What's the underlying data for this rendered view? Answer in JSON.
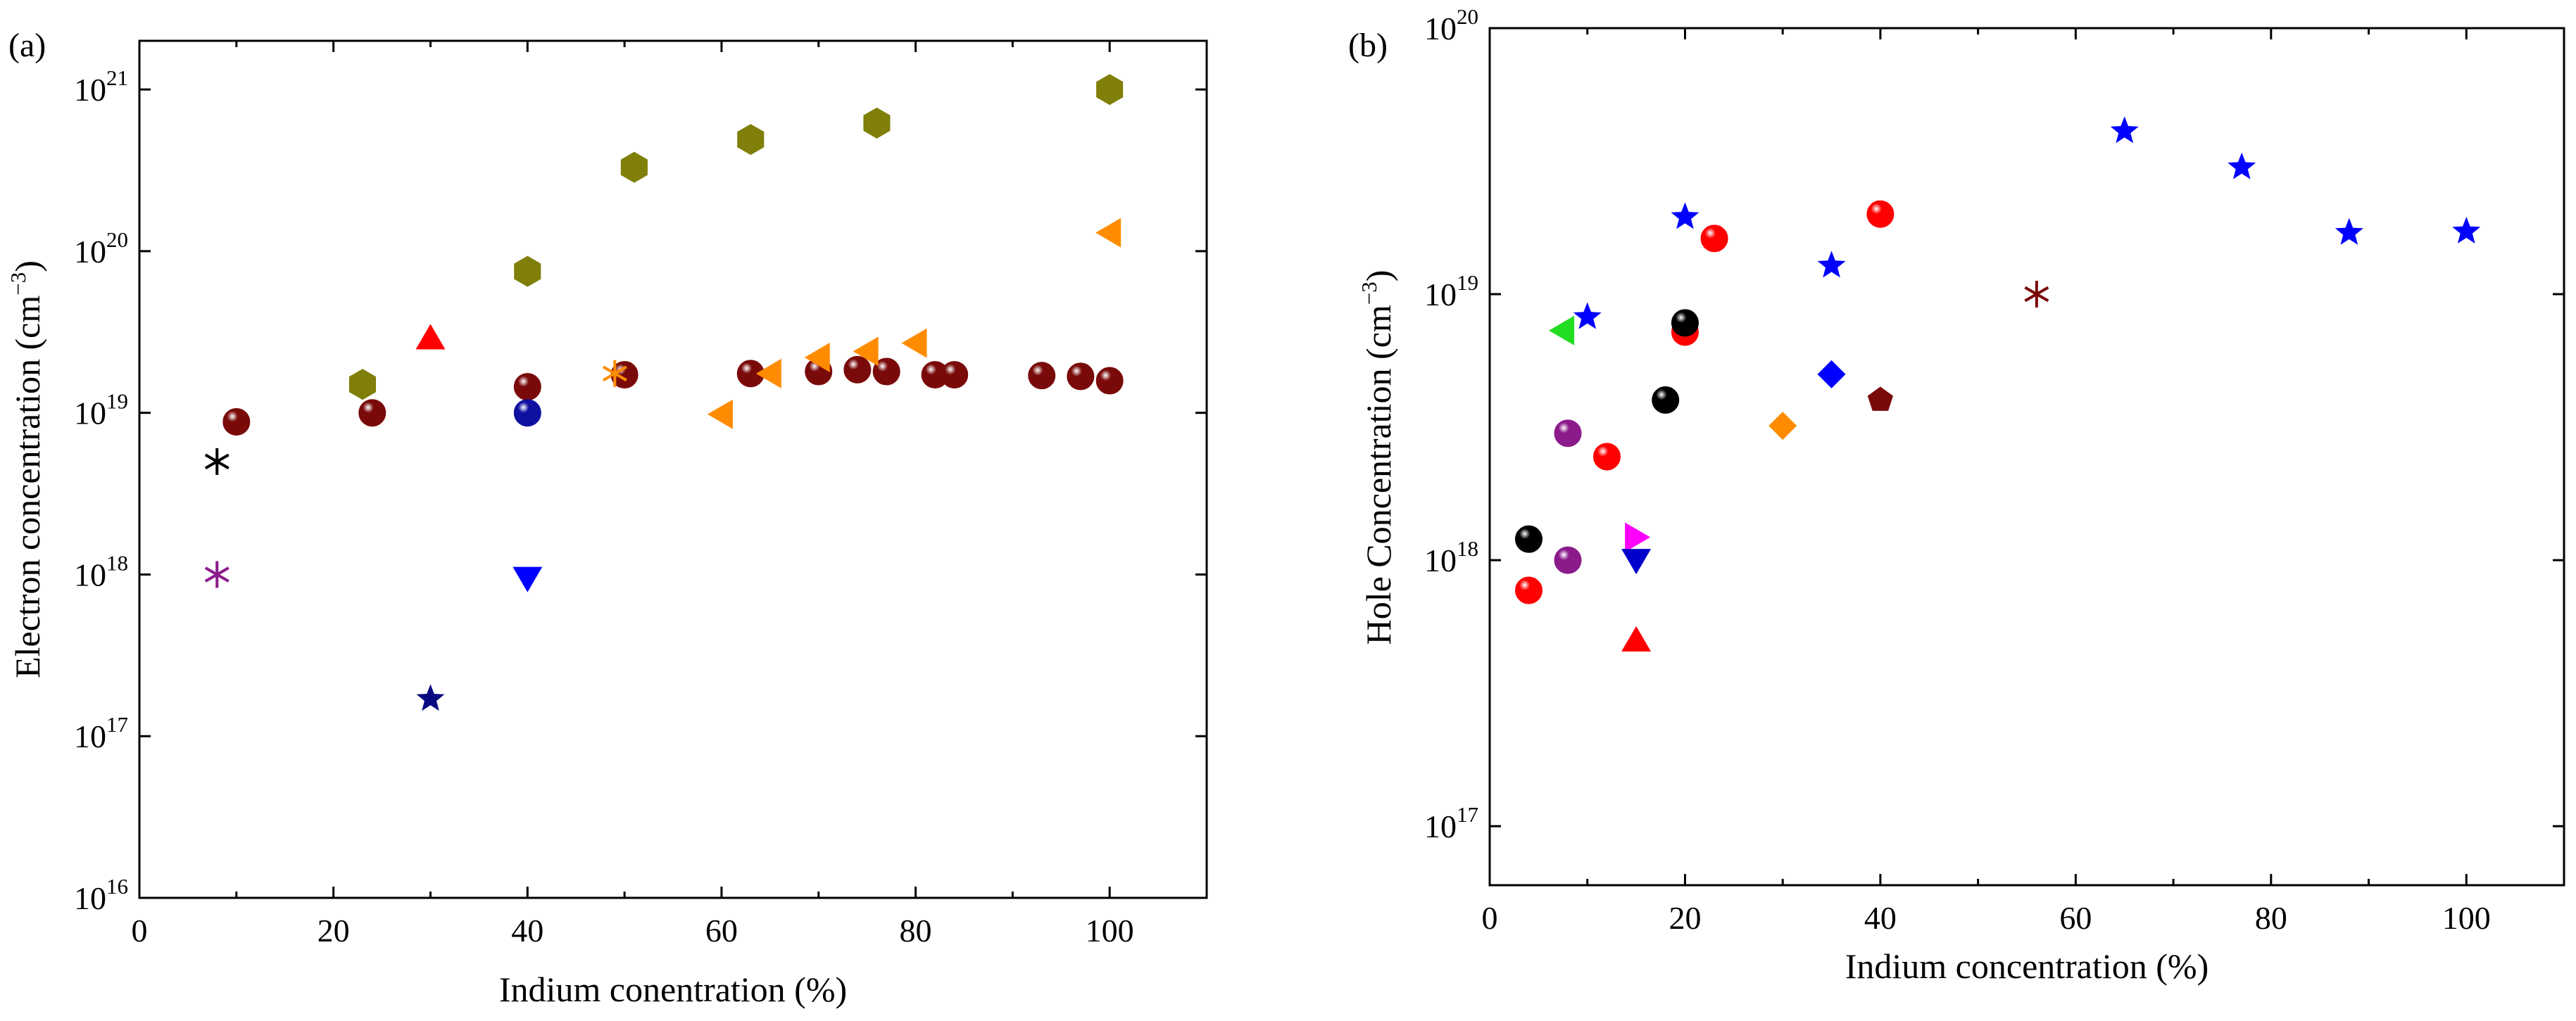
{
  "chart_data": [
    {
      "panel": "(a)",
      "type": "scatter",
      "title": "",
      "xlabel": "Indium conentration (%)",
      "ylabel": "Electron concentration (cm⁻³)",
      "ylabel_main": "Electron concentration (cm",
      "ylabel_exp": "−3",
      "ylabel_close": ")",
      "xlim": [
        0,
        110
      ],
      "ylim": [
        1e+16,
        2e+21
      ],
      "yscale": "log",
      "x_ticks": [
        0,
        20,
        40,
        60,
        80,
        100
      ],
      "y_ticks": [
        {
          "value": 1e+16,
          "base": "10",
          "exp": "16"
        },
        {
          "value": 1e+17,
          "base": "10",
          "exp": "17"
        },
        {
          "value": 1e+18,
          "base": "10",
          "exp": "18"
        },
        {
          "value": 1e+19,
          "base": "10",
          "exp": "19"
        },
        {
          "value": 1e+20,
          "base": "10",
          "exp": "20"
        },
        {
          "value": 1e+21,
          "base": "10",
          "exp": "21"
        }
      ],
      "series": [
        {
          "name": "dark red spheres",
          "marker": "sphere",
          "color": "#7a0a0a",
          "points": [
            [
              10,
              8.8e+18
            ],
            [
              24,
              1e+19
            ],
            [
              40,
              1.45e+19
            ],
            [
              50,
              1.72e+19
            ],
            [
              63,
              1.75e+19
            ],
            [
              70,
              1.8e+19
            ],
            [
              74,
              1.85e+19
            ],
            [
              77,
              1.8e+19
            ],
            [
              82,
              1.72e+19
            ],
            [
              84,
              1.72e+19
            ],
            [
              93,
              1.7e+19
            ],
            [
              97,
              1.68e+19
            ],
            [
              100,
              1.58e+19
            ]
          ]
        },
        {
          "name": "olive hexagons",
          "marker": "hexagon",
          "color": "#7f7f0a",
          "points": [
            [
              23,
              1.5e+19
            ],
            [
              40,
              7.5e+19
            ],
            [
              51,
              3.3e+20
            ],
            [
              63,
              4.9e+20
            ],
            [
              76,
              6.2e+20
            ],
            [
              100,
              1e+21
            ]
          ]
        },
        {
          "name": "orange left triangles",
          "marker": "triangle-left",
          "color": "#ff8c00",
          "points": [
            [
              60,
              9.8e+18
            ],
            [
              65,
              1.75e+19
            ],
            [
              70,
              2.2e+19
            ],
            [
              75,
              2.4e+19
            ],
            [
              80,
              2.7e+19
            ],
            [
              100,
              1.3e+20
            ]
          ]
        },
        {
          "name": "orange asterisk",
          "marker": "asterisk",
          "color": "#ff8c00",
          "points": [
            [
              49,
              1.75e+19
            ]
          ]
        },
        {
          "name": "black asterisk",
          "marker": "asterisk",
          "color": "#000000",
          "points": [
            [
              8,
              5e+18
            ]
          ]
        },
        {
          "name": "purple asterisk",
          "marker": "asterisk",
          "color": "#8b1a8b",
          "points": [
            [
              8,
              1e+18
            ]
          ]
        },
        {
          "name": "red triangle",
          "marker": "triangle-up",
          "color": "#ff0000",
          "points": [
            [
              30,
              2.9e+19
            ]
          ]
        },
        {
          "name": "blue sphere",
          "marker": "sphere",
          "color": "#1010a0",
          "points": [
            [
              40,
              1e+19
            ]
          ]
        },
        {
          "name": "blue down triangle",
          "marker": "triangle-down",
          "color": "#0000ff",
          "points": [
            [
              40,
              9.5e+17
            ]
          ]
        },
        {
          "name": "navy star",
          "marker": "star",
          "color": "#0a0a80",
          "points": [
            [
              30,
              1.7e+17
            ]
          ]
        }
      ]
    },
    {
      "panel": "(b)",
      "type": "scatter",
      "title": "",
      "xlabel": "Indium concentration (%)",
      "ylabel": "Hole Concentration (cm⁻³)",
      "ylabel_main": "Hole Concentration (cm",
      "ylabel_exp": "−3",
      "ylabel_close": ")",
      "xlim": [
        0,
        110
      ],
      "ylim": [
        6e+16,
        1e+20
      ],
      "yscale": "log",
      "x_ticks": [
        0,
        20,
        40,
        60,
        80,
        100
      ],
      "y_ticks": [
        {
          "value": 1e+17,
          "base": "10",
          "exp": "17"
        },
        {
          "value": 1e+18,
          "base": "10",
          "exp": "18"
        },
        {
          "value": 1e+19,
          "base": "10",
          "exp": "19"
        },
        {
          "value": 1e+20,
          "base": "10",
          "exp": "20"
        }
      ],
      "series": [
        {
          "name": "blue stars",
          "marker": "star",
          "color": "#0000ff",
          "points": [
            [
              10,
              8.2e+18
            ],
            [
              20,
              1.95e+19
            ],
            [
              35,
              1.28e+19
            ],
            [
              65,
              4.1e+19
            ],
            [
              77,
              3e+19
            ],
            [
              88,
              1.7e+19
            ],
            [
              100,
              1.72e+19
            ]
          ]
        },
        {
          "name": "red spheres",
          "marker": "sphere",
          "color": "#ff0000",
          "points": [
            [
              4,
              7.7e+17
            ],
            [
              12,
              2.45e+18
            ],
            [
              20,
              7.2e+18
            ],
            [
              23,
              1.62e+19
            ],
            [
              40,
              2e+19
            ]
          ]
        },
        {
          "name": "black spheres",
          "marker": "sphere",
          "color": "#000000",
          "points": [
            [
              4,
              1.2e+18
            ],
            [
              18,
              4e+18
            ],
            [
              20,
              7.8e+18
            ]
          ]
        },
        {
          "name": "purple spheres",
          "marker": "sphere",
          "color": "#8b1a8b",
          "points": [
            [
              8,
              3e+18
            ],
            [
              8,
              1e+18
            ]
          ]
        },
        {
          "name": "green left triangle",
          "marker": "triangle-left",
          "color": "#22dd22",
          "points": [
            [
              7.5,
              7.3e+18
            ]
          ]
        },
        {
          "name": "magenta right triangle",
          "marker": "triangle-right",
          "color": "#ff00ff",
          "points": [
            [
              15,
              1.22e+18
            ]
          ]
        },
        {
          "name": "blue down triangle",
          "marker": "triangle-down",
          "color": "#0000cc",
          "points": [
            [
              15,
              1e+18
            ]
          ]
        },
        {
          "name": "red up triangle",
          "marker": "triangle-up",
          "color": "#ff0000",
          "points": [
            [
              15,
              5e+17
            ]
          ]
        },
        {
          "name": "orange diamond",
          "marker": "diamond",
          "color": "#ff8c00",
          "points": [
            [
              30,
              3.2e+18
            ]
          ]
        },
        {
          "name": "blue diamond",
          "marker": "diamond",
          "color": "#0000ff",
          "points": [
            [
              35,
              5e+18
            ]
          ]
        },
        {
          "name": "dark red pentagon",
          "marker": "pentagon",
          "color": "#7a0a0a",
          "points": [
            [
              40,
              4e+18
            ]
          ]
        },
        {
          "name": "dark red asterisk",
          "marker": "asterisk",
          "color": "#7a0a0a",
          "points": [
            [
              56,
              1e+19
            ]
          ]
        }
      ]
    }
  ]
}
